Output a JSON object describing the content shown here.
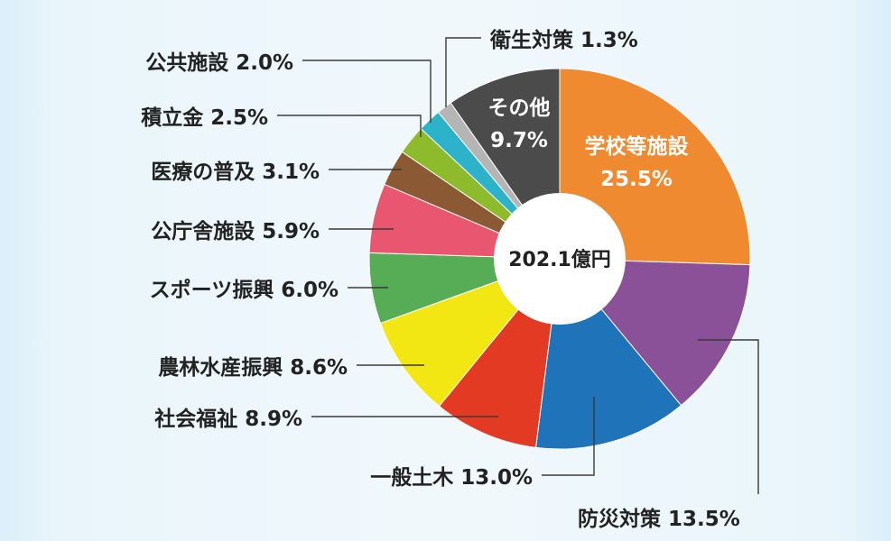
{
  "chart_data": {
    "type": "pie",
    "center_label": "202.1億円",
    "slices": [
      {
        "label": "学校等施設",
        "value": 25.5,
        "display": "25.5%",
        "color": "#ef8a30"
      },
      {
        "label": "防災対策",
        "value": 13.5,
        "display": "13.5%",
        "color": "#8a5199"
      },
      {
        "label": "一般土木",
        "value": 13.0,
        "display": "13.0%",
        "color": "#1f73b8"
      },
      {
        "label": "社会福祉",
        "value": 8.9,
        "display": "8.9%",
        "color": "#e33a24"
      },
      {
        "label": "農林水産振興",
        "value": 8.6,
        "display": "8.6%",
        "color": "#f2e613"
      },
      {
        "label": "スポーツ振興",
        "value": 6.0,
        "display": "6.0%",
        "color": "#56ad55"
      },
      {
        "label": "公庁舎施設",
        "value": 5.9,
        "display": "5.9%",
        "color": "#e8576f"
      },
      {
        "label": "医療の普及",
        "value": 3.1,
        "display": "3.1%",
        "color": "#8b5a34"
      },
      {
        "label": "積立金",
        "value": 2.5,
        "display": "2.5%",
        "color": "#8dbb2b"
      },
      {
        "label": "公共施設",
        "value": 2.0,
        "display": "2.0%",
        "color": "#2cb3c9"
      },
      {
        "label": "衛生対策",
        "value": 1.3,
        "display": "1.3%",
        "color": "#b5b5b5"
      },
      {
        "label": "その他",
        "value": 9.7,
        "display": "9.7%",
        "color": "#4b4b4b"
      }
    ]
  }
}
